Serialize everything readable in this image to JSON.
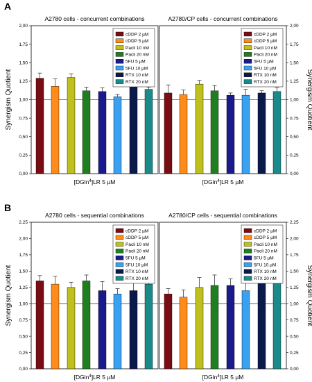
{
  "figure": {
    "ylabel": "Synergism Quotient",
    "xlabel_prefix": "[DGln",
    "xlabel_sup": "4",
    "xlabel_suffix": "]LR 5 µM"
  },
  "legend_colors": [
    "#7a0c14",
    "#ff8c1a",
    "#bfbf1e",
    "#1f7f1f",
    "#1a1a8c",
    "#3aa0f0",
    "#0a1a4a",
    "#1a8a8a"
  ],
  "y_ticks": [
    "0,00",
    "0,25",
    "0,50",
    "0,75",
    "1,00",
    "1,25",
    "1,50",
    "1,75",
    "2,00",
    "2,25"
  ],
  "chart_data": [
    {
      "panel": "A",
      "type": "bar",
      "title": "A2780 cells - concurrent combinations",
      "ylabel": "Synergism Quotient",
      "ylim": [
        0,
        2.0
      ],
      "reference_line": 1.0,
      "series": [
        {
          "name": "cDDP 2 µM",
          "value": 1.29,
          "error": 0.07
        },
        {
          "name": "cDDP 5 µM",
          "value": 1.18,
          "error": 0.1
        },
        {
          "name": "Pacli 10 nM",
          "value": 1.3,
          "error": 0.05
        },
        {
          "name": "Pacli 20 nM",
          "value": 1.12,
          "error": 0.05
        },
        {
          "name": "5FU 5 µM",
          "value": 1.11,
          "error": 0.05
        },
        {
          "name": "5FU 10 µM",
          "value": 1.04,
          "error": 0.03
        },
        {
          "name": "RTX 10 nM",
          "value": 1.19,
          "error": 0.03
        },
        {
          "name": "RTX 20 nM",
          "value": 1.14,
          "error": 0.03
        }
      ]
    },
    {
      "panel": "A",
      "type": "bar",
      "title": "A2780/CP cells - concurrent combinations",
      "ylabel": "Synergism Quotient",
      "ylim": [
        0,
        2.0
      ],
      "reference_line": 1.0,
      "series": [
        {
          "name": "cDDP 2 µM",
          "value": 1.09,
          "error": 0.11
        },
        {
          "name": "cDDP 5 µM",
          "value": 1.07,
          "error": 0.06
        },
        {
          "name": "Pacli 10 nM",
          "value": 1.21,
          "error": 0.05
        },
        {
          "name": "Pacli 20 nM",
          "value": 1.12,
          "error": 0.07
        },
        {
          "name": "5FU 5 µM",
          "value": 1.06,
          "error": 0.03
        },
        {
          "name": "5FU 10 µM",
          "value": 1.06,
          "error": 0.08
        },
        {
          "name": "RTX 10 nM",
          "value": 1.09,
          "error": 0.03
        },
        {
          "name": "RTX 20 nM",
          "value": 1.11,
          "error": 0.05
        }
      ]
    },
    {
      "panel": "B",
      "type": "bar",
      "title": "A2780 cells - sequential combinations",
      "ylabel": "Synergism Quotient",
      "ylim": [
        0,
        2.25
      ],
      "reference_line": 1.0,
      "series": [
        {
          "name": "cDDP 2 µM",
          "value": 1.35,
          "error": 0.08
        },
        {
          "name": "cDDP 5 µM",
          "value": 1.3,
          "error": 0.12
        },
        {
          "name": "Pacli 10 nM",
          "value": 1.25,
          "error": 0.08
        },
        {
          "name": "Pacli 20 nM",
          "value": 1.35,
          "error": 0.09
        },
        {
          "name": "5FU 5 µM",
          "value": 1.2,
          "error": 0.14
        },
        {
          "name": "5FU 10 µM",
          "value": 1.15,
          "error": 0.08
        },
        {
          "name": "RTX 10 nM",
          "value": 1.2,
          "error": 0.16
        },
        {
          "name": "RTX 20 nM",
          "value": 1.3,
          "error": 0.11
        }
      ]
    },
    {
      "panel": "B",
      "type": "bar",
      "title": "A2780/CP cells - sequential combinations",
      "ylabel": "Synergism Quotient",
      "ylim": [
        0,
        2.25
      ],
      "reference_line": 1.0,
      "series": [
        {
          "name": "cDDP 2 µM",
          "value": 1.15,
          "error": 0.08
        },
        {
          "name": "cDDP 5 µM",
          "value": 1.1,
          "error": 0.11
        },
        {
          "name": "Pacli 10 nM",
          "value": 1.25,
          "error": 0.15
        },
        {
          "name": "Pacli 20 nM",
          "value": 1.28,
          "error": 0.16
        },
        {
          "name": "5FU 5 µM",
          "value": 1.28,
          "error": 0.1
        },
        {
          "name": "5FU 10 µM",
          "value": 1.2,
          "error": 0.12
        },
        {
          "name": "RTX 10 nM",
          "value": 1.37,
          "error": 0.23
        },
        {
          "name": "RTX 20 nM",
          "value": 1.44,
          "error": 0.36
        }
      ]
    }
  ],
  "panel_labels": [
    "A",
    "B"
  ]
}
